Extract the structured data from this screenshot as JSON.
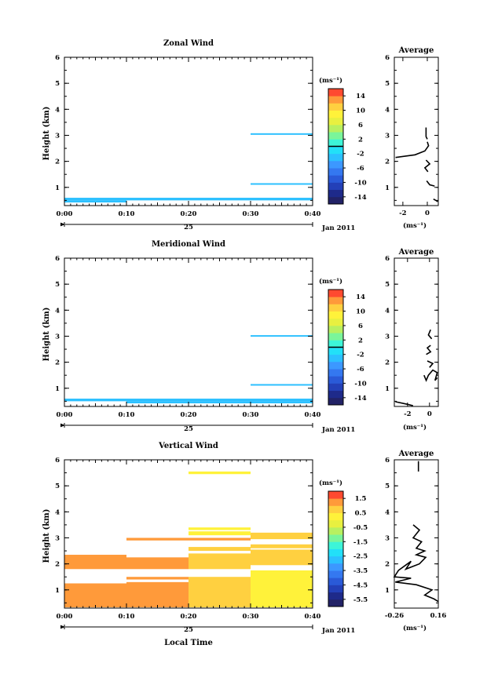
{
  "figure": {
    "xlabel": "Local Time",
    "date_label": "Jan 2011",
    "day_label": "25",
    "colorbar_unit": "(ms⁻¹)",
    "avg_title": "Average",
    "avg_xlabel": "(ms⁻¹)",
    "ylabel": "Height (km)"
  },
  "chart_data": [
    {
      "id": "zonal",
      "type": "heatmap",
      "title": "Zonal Wind",
      "xlabel": "",
      "ylabel": "Height (km)",
      "xticks": [
        "0:00",
        "0:10",
        "0:20",
        "0:30",
        "0:40"
      ],
      "xlim_min": [
        0,
        40
      ],
      "ylim_km": [
        0.3,
        6.0
      ],
      "yticks": [
        1,
        2,
        3,
        4,
        5,
        6
      ],
      "colorbar": {
        "ticks": [
          "14",
          "10",
          "6",
          "2",
          "-2",
          "-6",
          "-10",
          "-14"
        ],
        "range": [
          -16,
          16
        ],
        "marker_value": 0
      },
      "cells": [
        {
          "t": [
            0,
            40
          ],
          "h": [
            0.5,
            0.6
          ],
          "v": -3.5
        },
        {
          "t": [
            0,
            10
          ],
          "h": [
            0.42,
            0.5
          ],
          "v": -4
        },
        {
          "t": [
            30,
            40
          ],
          "h": [
            3.02,
            3.08
          ],
          "v": -3
        },
        {
          "t": [
            30,
            40
          ],
          "h": [
            1.1,
            1.16
          ],
          "v": -2.5
        }
      ],
      "average": {
        "title": "Average",
        "xlim": [
          -2.7,
          0.9
        ],
        "xticks": [
          -2,
          0
        ],
        "segments": [
          [
            [
              -0.1,
              3.3
            ],
            [
              -0.1,
              3.1
            ],
            [
              -0.1,
              2.95
            ],
            [
              0.0,
              2.85
            ]
          ],
          [
            [
              0.0,
              2.75
            ],
            [
              0.1,
              2.6
            ],
            [
              -0.2,
              2.4
            ],
            [
              -1.0,
              2.25
            ],
            [
              -2.6,
              2.15
            ]
          ],
          [
            [
              -0.1,
              2.05
            ],
            [
              0.2,
              1.9
            ],
            [
              -0.2,
              1.75
            ],
            [
              0.05,
              1.6
            ]
          ],
          [
            [
              -0.05,
              1.25
            ],
            [
              0.2,
              1.1
            ],
            [
              0.6,
              1.05
            ]
          ],
          [
            [
              0.5,
              0.55
            ],
            [
              0.7,
              0.5
            ],
            [
              0.85,
              0.45
            ]
          ]
        ]
      }
    },
    {
      "id": "meridional",
      "type": "heatmap",
      "title": "Meridional Wind",
      "xlabel": "",
      "ylabel": "Height (km)",
      "xticks": [
        "0:00",
        "0:10",
        "0:20",
        "0:30",
        "0:40"
      ],
      "xlim_min": [
        0,
        40
      ],
      "ylim_km": [
        0.3,
        6.0
      ],
      "yticks": [
        1,
        2,
        3,
        4,
        5,
        6
      ],
      "colorbar": {
        "ticks": [
          "14",
          "10",
          "6",
          "2",
          "-2",
          "-6",
          "-10",
          "-14"
        ],
        "range": [
          -16,
          16
        ],
        "marker_value": 0
      },
      "cells": [
        {
          "t": [
            0,
            40
          ],
          "h": [
            0.5,
            0.6
          ],
          "v": -3.5
        },
        {
          "t": [
            10,
            40
          ],
          "h": [
            0.42,
            0.5
          ],
          "v": -4
        },
        {
          "t": [
            30,
            40
          ],
          "h": [
            2.98,
            3.04
          ],
          "v": -3.5
        },
        {
          "t": [
            30,
            40
          ],
          "h": [
            1.1,
            1.16
          ],
          "v": -2.5
        }
      ],
      "average": {
        "title": "Average",
        "xlim": [
          -3.2,
          0.8
        ],
        "xticks": [
          -2,
          0
        ],
        "segments": [
          [
            [
              0.1,
              3.25
            ],
            [
              -0.1,
              3.05
            ],
            [
              0.2,
              2.9
            ]
          ],
          [
            [
              0.1,
              2.65
            ],
            [
              -0.2,
              2.55
            ],
            [
              0.1,
              2.4
            ],
            [
              -0.3,
              2.3
            ]
          ],
          [
            [
              -0.2,
              2.05
            ],
            [
              0.3,
              1.95
            ],
            [
              0.0,
              1.8
            ]
          ],
          [
            [
              -0.5,
              1.5
            ],
            [
              -0.3,
              1.3
            ],
            [
              -0.1,
              1.5
            ],
            [
              0.3,
              1.7
            ],
            [
              0.7,
              1.6
            ],
            [
              0.5,
              1.3
            ],
            [
              0.7,
              1.4
            ]
          ],
          [
            [
              -3.1,
              0.48
            ],
            [
              -2.0,
              0.38
            ],
            [
              -1.5,
              0.33
            ]
          ]
        ]
      }
    },
    {
      "id": "vertical",
      "type": "heatmap",
      "title": "Vertical Wind",
      "xlabel": "Local Time",
      "ylabel": "Height (km)",
      "xticks": [
        "0:00",
        "0:10",
        "0:20",
        "0:30",
        "0:40"
      ],
      "xlim_min": [
        0,
        40
      ],
      "ylim_km": [
        0.3,
        6.0
      ],
      "yticks": [
        1,
        2,
        3,
        4,
        5,
        6
      ],
      "colorbar": {
        "ticks": [
          "1.5",
          "0.5",
          "-0.5",
          "-1.5",
          "-2.5",
          "-3.5",
          "-4.5",
          "-5.5"
        ],
        "range": [
          -6.0,
          2.0
        ],
        "marker_value": null
      },
      "cells": [
        {
          "t": [
            0,
            10
          ],
          "h": [
            0.33,
            1.25
          ],
          "v": 1.0
        },
        {
          "t": [
            10,
            20
          ],
          "h": [
            0.33,
            1.3
          ],
          "v": 1.0
        },
        {
          "t": [
            20,
            30
          ],
          "h": [
            0.33,
            1.25
          ],
          "v": 0.6
        },
        {
          "t": [
            20,
            30
          ],
          "h": [
            1.25,
            1.5
          ],
          "v": 0.6
        },
        {
          "t": [
            30,
            40
          ],
          "h": [
            0.33,
            1.75
          ],
          "v": 0.3
        },
        {
          "t": [
            0,
            10
          ],
          "h": [
            1.8,
            2.35
          ],
          "v": 1.0
        },
        {
          "t": [
            10,
            20
          ],
          "h": [
            1.8,
            2.25
          ],
          "v": 1.0
        },
        {
          "t": [
            20,
            30
          ],
          "h": [
            1.8,
            2.4
          ],
          "v": 0.6
        },
        {
          "t": [
            30,
            40
          ],
          "h": [
            1.95,
            2.55
          ],
          "v": 0.5
        },
        {
          "t": [
            10,
            20
          ],
          "h": [
            1.4,
            1.5
          ],
          "v": 1.0
        },
        {
          "t": [
            10,
            20
          ],
          "h": [
            2.9,
            3.0
          ],
          "v": 1.0
        },
        {
          "t": [
            20,
            30
          ],
          "h": [
            2.9,
            3.0
          ],
          "v": 1.0
        },
        {
          "t": [
            20,
            30
          ],
          "h": [
            2.5,
            2.65
          ],
          "v": 0.6
        },
        {
          "t": [
            30,
            40
          ],
          "h": [
            2.6,
            2.75
          ],
          "v": 0.5
        },
        {
          "t": [
            30,
            40
          ],
          "h": [
            2.95,
            3.2
          ],
          "v": 0.5
        },
        {
          "t": [
            20,
            30
          ],
          "h": [
            3.1,
            3.25
          ],
          "v": 0.4
        },
        {
          "t": [
            20,
            30
          ],
          "h": [
            3.3,
            3.4
          ],
          "v": 0.3
        },
        {
          "t": [
            20,
            30
          ],
          "h": [
            5.45,
            5.55
          ],
          "v": 0.3
        }
      ],
      "average": {
        "title": "Average",
        "xlim": [
          -0.26,
          0.16
        ],
        "xticks": [
          -0.26,
          0.16
        ],
        "xtick_labels": [
          "-0.26",
          "0.16"
        ],
        "segments": [
          [
            [
              -0.03,
              5.95
            ],
            [
              -0.03,
              5.55
            ]
          ],
          [
            [
              -0.08,
              3.5
            ],
            [
              -0.02,
              3.3
            ],
            [
              -0.08,
              3.0
            ],
            [
              0.0,
              2.85
            ],
            [
              -0.05,
              2.6
            ],
            [
              0.03,
              2.5
            ],
            [
              -0.05,
              2.35
            ],
            [
              0.04,
              2.25
            ],
            [
              -0.02,
              2.0
            ],
            [
              -0.15,
              1.8
            ],
            [
              -0.1,
              2.1
            ],
            [
              -0.22,
              1.75
            ],
            [
              -0.26,
              1.5
            ],
            [
              -0.1,
              1.45
            ],
            [
              -0.25,
              1.3
            ],
            [
              -0.05,
              1.2
            ],
            [
              0.1,
              1.0
            ],
            [
              0.03,
              0.8
            ],
            [
              0.12,
              0.65
            ],
            [
              0.16,
              0.55
            ]
          ]
        ]
      }
    }
  ]
}
